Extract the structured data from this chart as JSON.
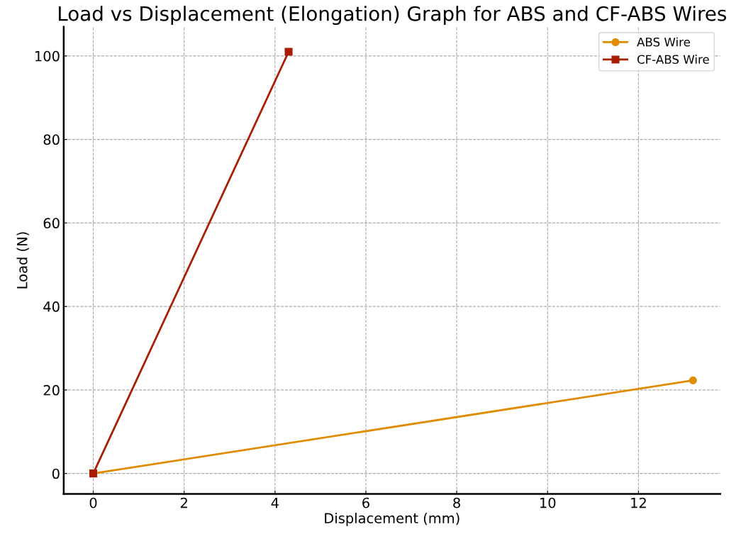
{
  "chart_data": {
    "type": "line",
    "title": "Load vs Displacement (Elongation) Graph for ABS and CF-ABS Wires",
    "xlabel": "Displacement (mm)",
    "ylabel": "Load (N)",
    "series": [
      {
        "name": "ABS Wire",
        "color": "#e08c00",
        "x": [
          0,
          13.2
        ],
        "values": [
          0,
          22.3
        ],
        "marker": "circle"
      },
      {
        "name": "CF-ABS Wire",
        "color": "#a81e00",
        "x": [
          0,
          4.3
        ],
        "values": [
          0,
          101
        ],
        "marker": "square"
      }
    ],
    "xlim": [
      -0.65,
      13.8
    ],
    "ylim": [
      -4.9,
      107
    ],
    "xticks": [
      0,
      2,
      4,
      6,
      8,
      10,
      12
    ],
    "yticks": [
      0,
      20,
      40,
      60,
      80,
      100
    ],
    "grid": true,
    "legend": "top right",
    "line_style": "solid"
  }
}
